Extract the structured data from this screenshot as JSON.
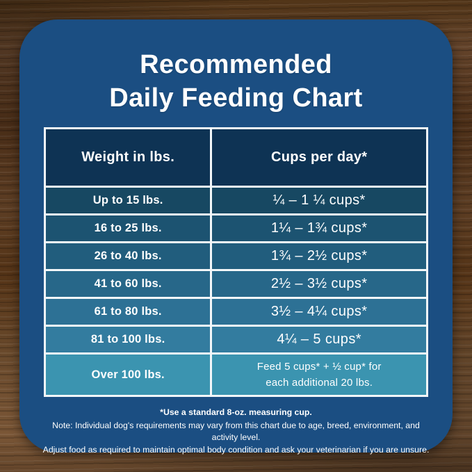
{
  "title": {
    "line1": "Recommended",
    "line2": "Daily Feeding Chart"
  },
  "table": {
    "headers": {
      "weight": "Weight in lbs.",
      "cups": "Cups per day*"
    },
    "rows": [
      {
        "weight": "Up to 15 lbs.",
        "cups": "¼ – 1 ¼ cups*"
      },
      {
        "weight": "16 to 25 lbs.",
        "cups": "1¼ – 1¾ cups*"
      },
      {
        "weight": "26 to 40 lbs.",
        "cups": "1¾ – 2½ cups*"
      },
      {
        "weight": "41 to 60 lbs.",
        "cups": "2½ – 3½ cups*"
      },
      {
        "weight": "61 to 80 lbs.",
        "cups": "3½ – 4¼ cups*"
      },
      {
        "weight": "81 to 100 lbs.",
        "cups": "4¼ – 5 cups*"
      },
      {
        "weight": "Over 100 lbs.",
        "cups_line1": "Feed 5 cups* + ½ cup* for",
        "cups_line2": "each additional 20 lbs."
      }
    ]
  },
  "notes": {
    "measuring_cup": "*Use a standard 8-oz. measuring cup.",
    "disclaimer_line1": "Note: Individual dog's requirements may vary from this chart due to age, breed, environment, and activity level.",
    "disclaimer_line2": "Adjust food as required to maintain optimal body condition and ask your veterinarian if you are unsure."
  },
  "colors": {
    "card_bg": "#1b4e82",
    "table_border": "#f3f7f9",
    "header_bg": "#0e3354",
    "row_colors": [
      "#174862",
      "#1c5371",
      "#215d7d",
      "#276789",
      "#2d7195",
      "#337c9f",
      "#3b94b0"
    ],
    "text": "#ffffff",
    "wood_base": "#57381f"
  },
  "chart_data": {
    "type": "table",
    "title": "Recommended Daily Feeding Chart",
    "columns": [
      "Weight in lbs.",
      "Cups per day*"
    ],
    "rows": [
      [
        "Up to 15 lbs.",
        "¼ – 1 ¼ cups*"
      ],
      [
        "16 to 25 lbs.",
        "1¼ – 1¾ cups*"
      ],
      [
        "26 to 40 lbs.",
        "1¾ – 2½ cups*"
      ],
      [
        "41 to 60 lbs.",
        "2½ – 3½ cups*"
      ],
      [
        "61 to 80 lbs.",
        "3½ – 4¼ cups*"
      ],
      [
        "81 to 100 lbs.",
        "4¼ – 5 cups*"
      ],
      [
        "Over 100 lbs.",
        "Feed 5 cups* + ½ cup* for each additional 20 lbs."
      ]
    ],
    "footnote": "*Use a standard 8-oz. measuring cup.",
    "notes": "Individual dog's requirements may vary from this chart due to age, breed, environment, and activity level. Adjust food as required to maintain optimal body condition and ask your veterinarian if you are unsure."
  }
}
